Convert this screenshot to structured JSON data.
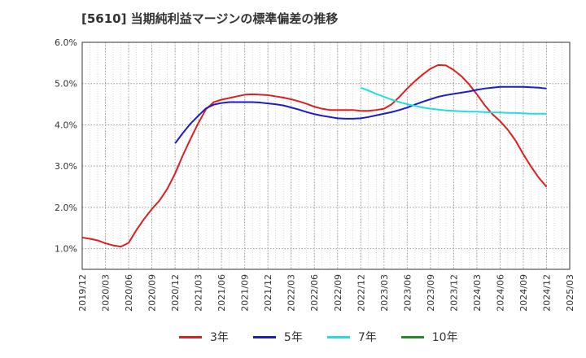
{
  "chart_data": {
    "type": "line",
    "title": "[5610]  当期純利益マージンの標準偏差の推移",
    "y_ticks": [
      "1.0%",
      "2.0%",
      "3.0%",
      "4.0%",
      "5.0%",
      "6.0%"
    ],
    "ylim": [
      0.5,
      6.0
    ],
    "x_ticks": [
      "2019/12",
      "2020/03",
      "2020/06",
      "2020/09",
      "2020/12",
      "2021/03",
      "2021/06",
      "2021/09",
      "2021/12",
      "2022/03",
      "2022/06",
      "2022/09",
      "2022/12",
      "2023/03",
      "2023/06",
      "2023/09",
      "2023/12",
      "2024/03",
      "2024/06",
      "2024/09",
      "2024/12",
      "2025/03"
    ],
    "grid": true,
    "legend_position": "bottom",
    "series": [
      {
        "name": "3年",
        "color": "#dd1f1f",
        "x": [
          "2019/12",
          "2020/01",
          "2020/02",
          "2020/03",
          "2020/04",
          "2020/05",
          "2020/06",
          "2020/07",
          "2020/08",
          "2020/09",
          "2020/10",
          "2020/11",
          "2020/12",
          "2021/01",
          "2021/02",
          "2021/03",
          "2021/04",
          "2021/05",
          "2021/06",
          "2021/07",
          "2021/08",
          "2021/09",
          "2021/10",
          "2021/11",
          "2021/12",
          "2022/01",
          "2022/02",
          "2022/03",
          "2022/04",
          "2022/05",
          "2022/06",
          "2022/07",
          "2022/08",
          "2022/09",
          "2022/10",
          "2022/11",
          "2022/12",
          "2023/01",
          "2023/02",
          "2023/03",
          "2023/04",
          "2023/05",
          "2023/06",
          "2023/07",
          "2023/08",
          "2023/09",
          "2023/10",
          "2023/11",
          "2023/12",
          "2024/01",
          "2024/02",
          "2024/03",
          "2024/04",
          "2024/05",
          "2024/06",
          "2024/07",
          "2024/08",
          "2024/09",
          "2024/10",
          "2024/11",
          "2024/12"
        ],
        "values": [
          1.27,
          1.24,
          1.2,
          1.13,
          1.08,
          1.05,
          1.14,
          1.45,
          1.72,
          1.96,
          2.17,
          2.45,
          2.82,
          3.26,
          3.66,
          4.04,
          4.38,
          4.55,
          4.61,
          4.65,
          4.69,
          4.73,
          4.74,
          4.73,
          4.72,
          4.69,
          4.66,
          4.62,
          4.57,
          4.51,
          4.44,
          4.39,
          4.36,
          4.36,
          4.36,
          4.36,
          4.34,
          4.34,
          4.36,
          4.39,
          4.5,
          4.68,
          4.88,
          5.06,
          5.22,
          5.36,
          5.45,
          5.44,
          5.33,
          5.18,
          4.98,
          4.74,
          4.48,
          4.26,
          4.09,
          3.88,
          3.62,
          3.29,
          2.99,
          2.72,
          2.5
        ]
      },
      {
        "name": "5年",
        "color": "#1b1bcc",
        "x": [
          "2020/12",
          "2021/01",
          "2021/02",
          "2021/03",
          "2021/04",
          "2021/05",
          "2021/06",
          "2021/07",
          "2021/08",
          "2021/09",
          "2021/10",
          "2021/11",
          "2021/12",
          "2022/01",
          "2022/02",
          "2022/03",
          "2022/04",
          "2022/05",
          "2022/06",
          "2022/07",
          "2022/08",
          "2022/09",
          "2022/10",
          "2022/11",
          "2022/12",
          "2023/01",
          "2023/02",
          "2023/03",
          "2023/04",
          "2023/05",
          "2023/06",
          "2023/07",
          "2023/08",
          "2023/09",
          "2023/10",
          "2023/11",
          "2023/12",
          "2024/01",
          "2024/02",
          "2024/03",
          "2024/04",
          "2024/05",
          "2024/06",
          "2024/07",
          "2024/08",
          "2024/09",
          "2024/10",
          "2024/11",
          "2024/12"
        ],
        "values": [
          3.55,
          3.8,
          4.03,
          4.22,
          4.4,
          4.49,
          4.53,
          4.55,
          4.55,
          4.55,
          4.55,
          4.54,
          4.52,
          4.5,
          4.47,
          4.42,
          4.37,
          4.31,
          4.26,
          4.22,
          4.19,
          4.16,
          4.15,
          4.15,
          4.16,
          4.19,
          4.23,
          4.27,
          4.31,
          4.36,
          4.42,
          4.49,
          4.56,
          4.62,
          4.68,
          4.72,
          4.75,
          4.78,
          4.81,
          4.85,
          4.88,
          4.9,
          4.92,
          4.92,
          4.92,
          4.92,
          4.91,
          4.9,
          4.88
        ]
      },
      {
        "name": "7年",
        "color": "#22dddd",
        "x": [
          "2022/12",
          "2023/01",
          "2023/02",
          "2023/03",
          "2023/04",
          "2023/05",
          "2023/06",
          "2023/07",
          "2023/08",
          "2023/09",
          "2023/10",
          "2023/11",
          "2023/12",
          "2024/01",
          "2024/02",
          "2024/03",
          "2024/04",
          "2024/05",
          "2024/06",
          "2024/07",
          "2024/08",
          "2024/09",
          "2024/10",
          "2024/11",
          "2024/12"
        ],
        "values": [
          4.9,
          4.83,
          4.75,
          4.68,
          4.61,
          4.55,
          4.5,
          4.46,
          4.42,
          4.39,
          4.37,
          4.35,
          4.34,
          4.33,
          4.32,
          4.32,
          4.31,
          4.3,
          4.3,
          4.29,
          4.29,
          4.28,
          4.27,
          4.27,
          4.27
        ]
      },
      {
        "name": "10年",
        "color": "#1e8c1e",
        "x": [],
        "values": []
      }
    ]
  }
}
